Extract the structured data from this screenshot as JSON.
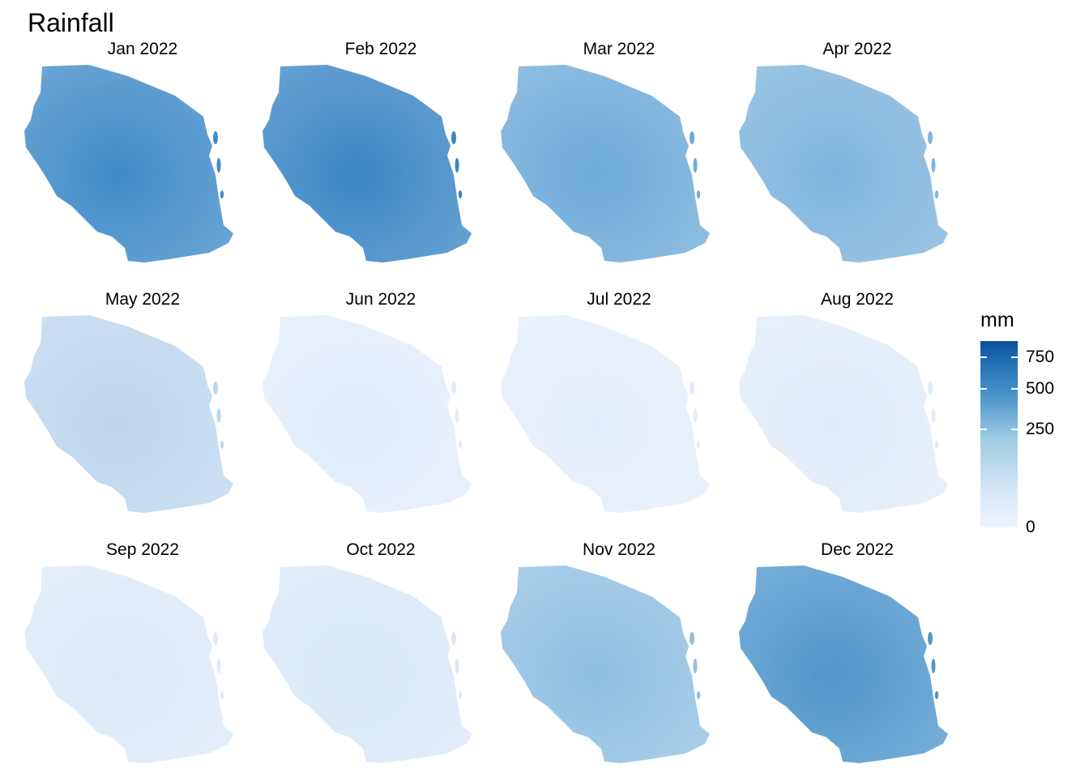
{
  "title": "Rainfall",
  "legend": {
    "title": "mm",
    "ticks": [
      {
        "value": 750,
        "label": "750"
      },
      {
        "value": 500,
        "label": "500"
      },
      {
        "value": 250,
        "label": "250"
      },
      {
        "value": 0,
        "label": "0"
      }
    ],
    "scale": "sqrt",
    "range": [
      0,
      900
    ],
    "colors": {
      "low": "#eef4fd",
      "mid": "#6baed6",
      "high": "#08519c"
    }
  },
  "panels": [
    {
      "label": "Jan 2022",
      "color": "#3f8bc8"
    },
    {
      "label": "Feb 2022",
      "color": "#3a86c5"
    },
    {
      "label": "Mar 2022",
      "color": "#6eaad8"
    },
    {
      "label": "Apr 2022",
      "color": "#7fb4dc"
    },
    {
      "label": "May 2022",
      "color": "#bcd6ee"
    },
    {
      "label": "Jun 2022",
      "color": "#e1ecf9"
    },
    {
      "label": "Jul 2022",
      "color": "#e3edf9"
    },
    {
      "label": "Aug 2022",
      "color": "#e0ebf8"
    },
    {
      "label": "Sep 2022",
      "color": "#dde9f7"
    },
    {
      "label": "Oct 2022",
      "color": "#d9e7f6"
    },
    {
      "label": "Nov 2022",
      "color": "#90bfe2"
    },
    {
      "label": "Dec 2022",
      "color": "#4f96cc"
    }
  ]
}
